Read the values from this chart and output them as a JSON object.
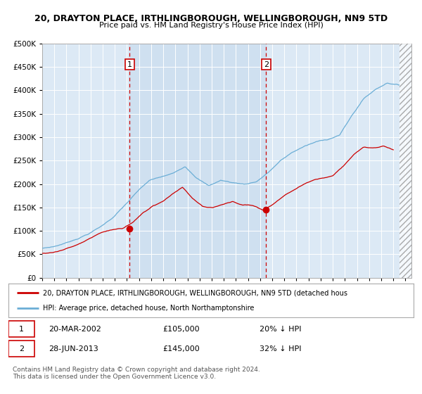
{
  "title": "20, DRAYTON PLACE, IRTHLINGBOROUGH, WELLINGBOROUGH, NN9 5TD",
  "subtitle": "Price paid vs. HM Land Registry's House Price Index (HPI)",
  "ylim": [
    0,
    500000
  ],
  "yticks": [
    0,
    50000,
    100000,
    150000,
    200000,
    250000,
    300000,
    350000,
    400000,
    450000,
    500000
  ],
  "plot_bg": "#dce9f5",
  "hpi_color": "#6baed6",
  "price_color": "#cc0000",
  "dashed_color": "#cc0000",
  "sale1": {
    "date_num": 2002.22,
    "price": 105000,
    "label": "1",
    "date_str": "20-MAR-2002",
    "pct": "20% ↓ HPI"
  },
  "sale2": {
    "date_num": 2013.49,
    "price": 145000,
    "label": "2",
    "date_str": "28-JUN-2013",
    "pct": "32% ↓ HPI"
  },
  "legend_price_label": "20, DRAYTON PLACE, IRTHLINGBOROUGH, WELLINGBOROUGH, NN9 5TD (detached hous",
  "legend_hpi_label": "HPI: Average price, detached house, North Northamptonshire",
  "footer": "Contains HM Land Registry data © Crown copyright and database right 2024.\nThis data is licensed under the Open Government Licence v3.0.",
  "xmin": 1995,
  "xmax": 2025.5,
  "hatch_start": 2024.5,
  "hatch_end": 2025.5,
  "shade_start": 2002.22,
  "shade_end": 2013.49,
  "shade_color": "#cfe0f0"
}
